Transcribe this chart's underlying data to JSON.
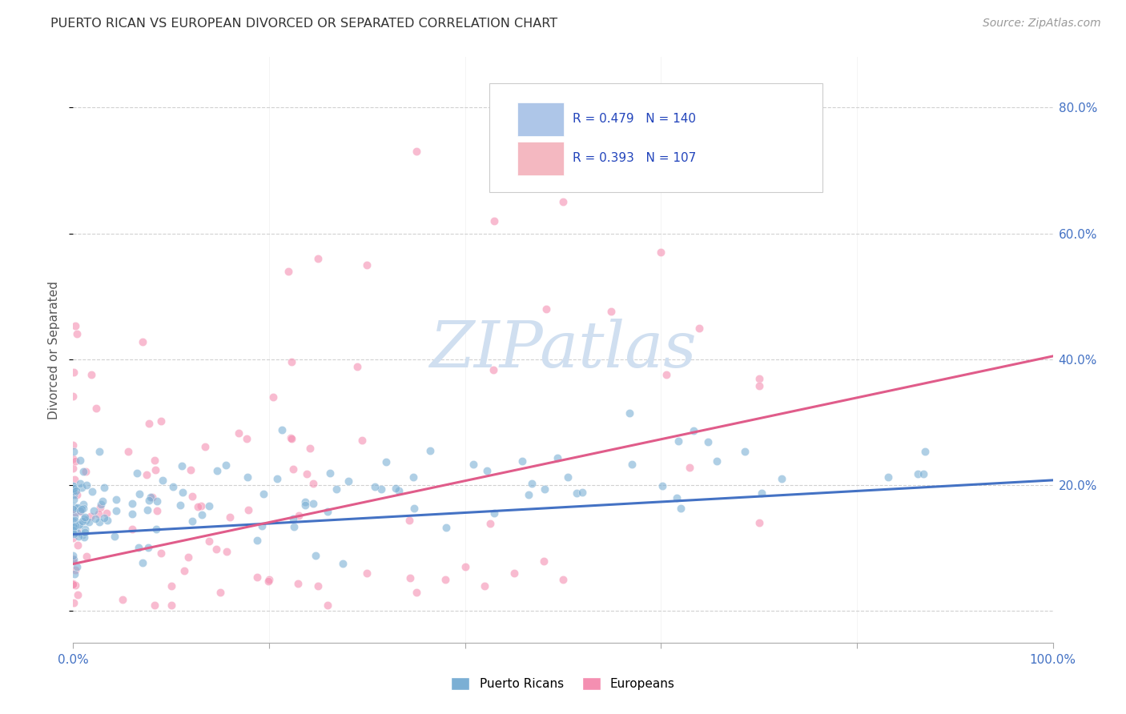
{
  "title": "PUERTO RICAN VS EUROPEAN DIVORCED OR SEPARATED CORRELATION CHART",
  "source": "Source: ZipAtlas.com",
  "ylabel": "Divorced or Separated",
  "watermark": "ZIPatlas",
  "xlim": [
    0.0,
    1.0
  ],
  "ylim": [
    -0.05,
    0.88
  ],
  "xticks": [
    0.0,
    0.2,
    0.4,
    0.6,
    0.8,
    1.0
  ],
  "yticks": [
    0.0,
    0.2,
    0.4,
    0.6,
    0.8
  ],
  "yticklabels_right": [
    "",
    "20.0%",
    "40.0%",
    "60.0%",
    "80.0%"
  ],
  "legend_blue_r": "0.479",
  "legend_blue_n": "140",
  "legend_pink_r": "0.393",
  "legend_pink_n": "107",
  "legend_blue_patch": "#aec6e8",
  "legend_pink_patch": "#f4b8c1",
  "blue_scatter_color": "#7bafd4",
  "pink_scatter_color": "#f48fb1",
  "blue_line_color": "#4472c4",
  "pink_line_color": "#e05c8a",
  "background_color": "#ffffff",
  "grid_color": "#cccccc",
  "title_color": "#333333",
  "axis_label_color": "#555555",
  "right_tick_color": "#4472c4",
  "left_tick_color": "#4472c4",
  "watermark_color": "#d0dff0",
  "blue_line_start": 0.122,
  "blue_line_end": 0.208,
  "pink_line_start": 0.075,
  "pink_line_end": 0.405,
  "seed_blue": 42,
  "seed_pink": 77
}
